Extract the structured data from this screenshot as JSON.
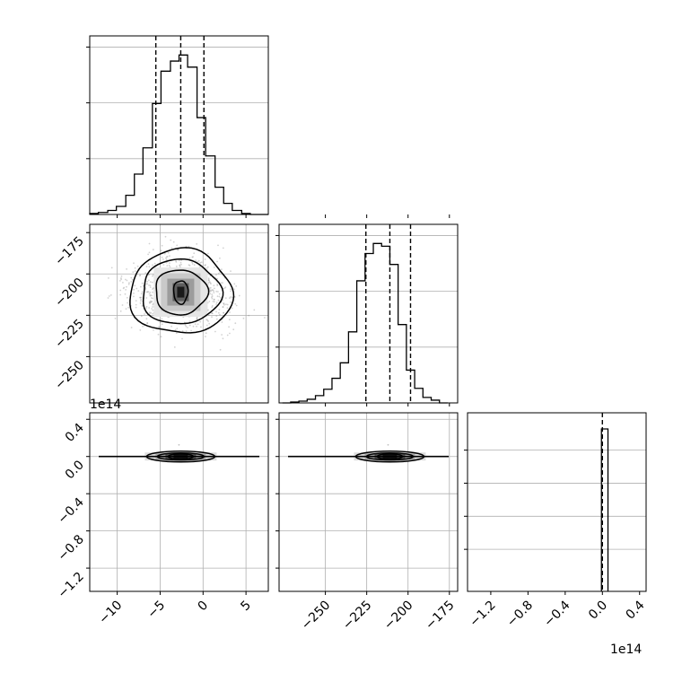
{
  "chart_data": {
    "type": "corner",
    "grid": true,
    "colors": {
      "line": "#000000",
      "grid": "#b0b0b0",
      "scatter": "#7f7f7f"
    },
    "parameters": [
      {
        "xlim": [
          -13.2,
          7.6
        ],
        "xticks": [
          -10,
          -5,
          0,
          5
        ],
        "quantiles": [
          -5.5,
          -2.6,
          0.1
        ]
      },
      {
        "xlim": [
          -278,
          -170
        ],
        "xticks": [
          -250,
          -225,
          -200,
          -175
        ],
        "quantiles": [
          -225.5,
          -211,
          -198.5
        ]
      },
      {
        "xlim": [
          -145000000000000.0,
          47000000000000.0
        ],
        "xticks": [
          -1.2,
          -0.8,
          -0.4,
          0.0,
          0.4
        ],
        "offset": "1e14",
        "quantiles": [
          -1000000000000.0,
          0.0,
          1000000000000.0
        ]
      }
    ],
    "left_ticks": {
      "row2": [
        -175,
        -200,
        -225,
        -250
      ],
      "row3": [
        0.4,
        0.0,
        -0.4,
        -0.8,
        -1.2
      ],
      "row3_offset": "1e14"
    },
    "histograms": [
      {
        "bins": [
          -13.2,
          -12.2,
          -11.1,
          -10.1,
          -9.0,
          -8.0,
          -7.0,
          -5.9,
          -4.9,
          -3.8,
          -2.8,
          -1.8,
          -0.7,
          0.3,
          1.4,
          2.4,
          3.4,
          4.5,
          5.5,
          6.6,
          7.6
        ],
        "counts": [
          1,
          2,
          4,
          8,
          19,
          40,
          66,
          110,
          142,
          152,
          158,
          146,
          96,
          58,
          27,
          11,
          4,
          1,
          0,
          0
        ]
      },
      {
        "bins": [
          -276,
          -271,
          -266,
          -261,
          -256,
          -251,
          -246,
          -241,
          -236,
          -231,
          -226,
          -221,
          -216,
          -211,
          -206,
          -201,
          -196,
          -191,
          -186,
          -181,
          -176
        ],
        "counts": [
          0,
          1,
          2,
          4,
          8,
          15,
          27,
          44,
          78,
          134,
          164,
          175,
          172,
          152,
          86,
          36,
          16,
          6,
          3,
          0
        ]
      },
      {
        "bins": [
          -1000000000000.0,
          6000000000000.0
        ],
        "counts": [
          1
        ]
      }
    ],
    "contour_panels": [
      {
        "panel": "p1-vs-p0",
        "center": [
          -2.6,
          -211
        ],
        "sigma": [
          3.1,
          11
        ],
        "levels": [
          0.5,
          1.0,
          1.5,
          2.0
        ]
      },
      {
        "panel": "p2-vs-p0",
        "center": [
          -2.6,
          0
        ],
        "sigma": [
          3.1,
          3000000000000.0
        ]
      },
      {
        "panel": "p2-vs-p1",
        "center": [
          -211,
          0
        ],
        "sigma": [
          11,
          3000000000000.0
        ]
      }
    ]
  }
}
